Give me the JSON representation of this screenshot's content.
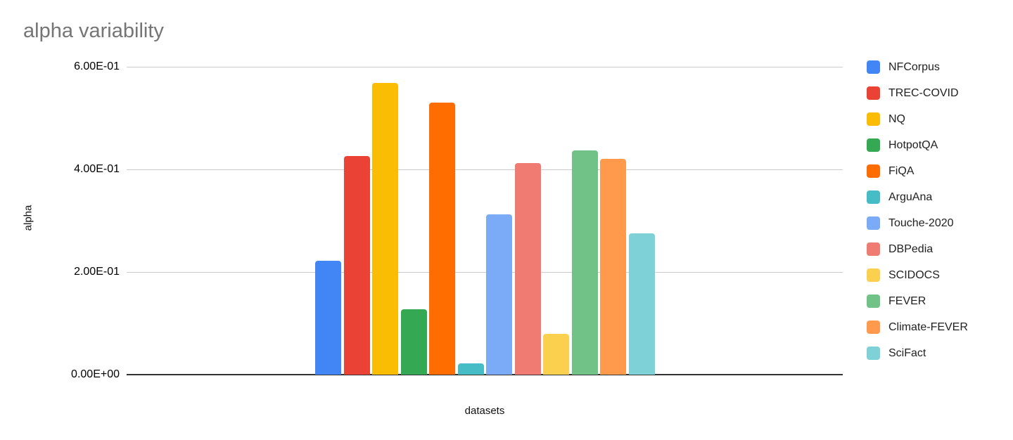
{
  "chart_data": {
    "type": "bar",
    "title": "alpha variability",
    "xlabel": "datasets",
    "ylabel": "alpha",
    "ylim": [
      0,
      0.6
    ],
    "grid": true,
    "legend_position": "right",
    "y_ticks": [
      {
        "value": 0.0,
        "label": "0.00E+00"
      },
      {
        "value": 0.2,
        "label": "2.00E-01"
      },
      {
        "value": 0.4,
        "label": "4.00E-01"
      },
      {
        "value": 0.6,
        "label": "6.00E-01"
      }
    ],
    "series": [
      {
        "name": "NFCorpus",
        "value": 0.222,
        "color": "#4285F4"
      },
      {
        "name": "TREC-COVID",
        "value": 0.426,
        "color": "#EA4335"
      },
      {
        "name": "NQ",
        "value": 0.569,
        "color": "#FBBC04"
      },
      {
        "name": "HotpotQA",
        "value": 0.128,
        "color": "#34A853"
      },
      {
        "name": "FiQA",
        "value": 0.53,
        "color": "#FF6D01"
      },
      {
        "name": "ArguAna",
        "value": 0.022,
        "color": "#46BDC6"
      },
      {
        "name": "Touche-2020",
        "value": 0.312,
        "color": "#7BAAF7"
      },
      {
        "name": "DBPedia",
        "value": 0.413,
        "color": "#F07B72"
      },
      {
        "name": "SCIDOCS",
        "value": 0.079,
        "color": "#FCD04F"
      },
      {
        "name": "FEVER",
        "value": 0.437,
        "color": "#71C287"
      },
      {
        "name": "Climate-FEVER",
        "value": 0.42,
        "color": "#FF9A4D"
      },
      {
        "name": "SciFact",
        "value": 0.275,
        "color": "#7ED1D7"
      }
    ]
  }
}
